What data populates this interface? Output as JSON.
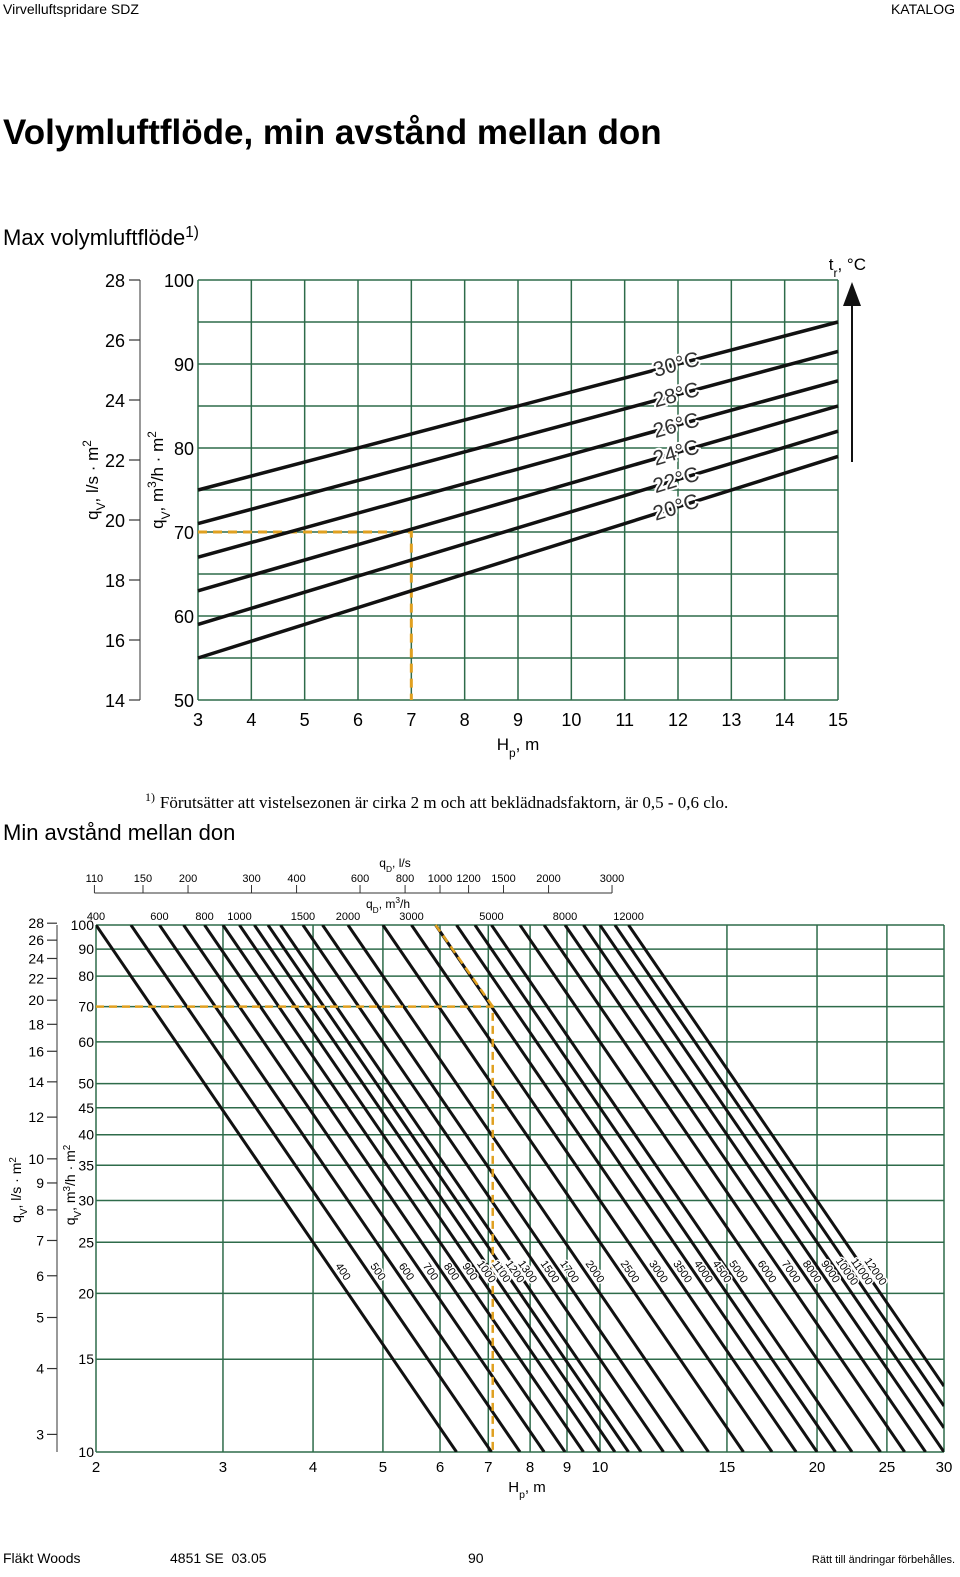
{
  "header": {
    "left": "Virvelluftspridare SDZ",
    "right": "KATALOG"
  },
  "title": "Volymluftflöde, min avstånd mellan don",
  "heading1": [
    "Max volymluftflöde",
    {
      "sup": "1)"
    }
  ],
  "footnote": [
    {
      "sup": "1)"
    },
    "Förutsätter att vistelsezonen är cirka 2 m och att beklädnadsfaktorn, är 0,5 - 0,6 clo."
  ],
  "heading2": "Min avstånd mellan don",
  "footer": {
    "company": "Fläkt Woods",
    "code": "4851 SE  03.05",
    "page": "90",
    "note": "Rätt till ändringar förbehålles."
  },
  "chart_data": [
    {
      "type": "line",
      "x": [
        3,
        15
      ],
      "series": [
        {
          "name": "30°C",
          "values": [
            75,
            95
          ]
        },
        {
          "name": "28°C",
          "values": [
            71,
            91.5
          ]
        },
        {
          "name": "26°C",
          "values": [
            67,
            88
          ]
        },
        {
          "name": "24°C",
          "values": [
            63,
            85
          ]
        },
        {
          "name": "22°C",
          "values": [
            59,
            82
          ]
        },
        {
          "name": "20°C",
          "values": [
            55,
            79
          ]
        }
      ],
      "color": "#111111",
      "grid_color": "#2e6b4a",
      "xlim": [
        3,
        15
      ],
      "xticks": [
        3,
        4,
        5,
        6,
        7,
        8,
        9,
        10,
        11,
        12,
        13,
        14,
        15
      ],
      "ylim": [
        50,
        100
      ],
      "yticks": [
        50,
        60,
        70,
        80,
        90,
        100
      ],
      "ygrid": [
        50,
        55,
        60,
        65,
        70,
        75,
        80,
        85,
        90,
        95,
        100
      ],
      "y2lim": [
        14,
        28
      ],
      "y2ticks": [
        14,
        16,
        18,
        20,
        22,
        24,
        26,
        28
      ],
      "xlabel": [
        "H",
        {
          "sub": "p"
        },
        ", m"
      ],
      "ylabel": [
        "q",
        {
          "sub": "V"
        },
        ", m",
        {
          "sup": "3"
        },
        "/h · m",
        {
          "sup": "2"
        }
      ],
      "y2label": [
        "q",
        {
          "sub": "V"
        },
        ", l/s · m",
        {
          "sup": "2"
        }
      ],
      "arrow_label": [
        "t",
        {
          "sub": "r"
        },
        ", °C"
      ],
      "example": {
        "x": 7,
        "y": 70,
        "color": "#e0a020"
      }
    },
    {
      "type": "nomogram",
      "lines": [
        400,
        500,
        600,
        700,
        800,
        900,
        1000,
        1100,
        1200,
        1300,
        1500,
        1700,
        2000,
        2500,
        3000,
        3500,
        4000,
        4500,
        5000,
        6000,
        7000,
        8000,
        9000,
        10000,
        11000,
        12000
      ],
      "color": "#111111",
      "grid_color": "#2e6b4a",
      "xlim": [
        2,
        30
      ],
      "xticks": [
        2,
        3,
        4,
        5,
        6,
        7,
        8,
        9,
        10,
        15,
        20,
        25,
        30
      ],
      "ylim": [
        10,
        100
      ],
      "yticks": [
        10,
        15,
        20,
        25,
        30,
        35,
        40,
        45,
        50,
        60,
        70,
        80,
        90,
        100
      ],
      "y2lim": [
        2.778,
        27.78
      ],
      "y2ticks": [
        3,
        4,
        5,
        6,
        7,
        8,
        9,
        10,
        12,
        14,
        16,
        18,
        20,
        22,
        24,
        26,
        28
      ],
      "log_scale": true,
      "xlabel": [
        "H",
        {
          "sub": "p"
        },
        ", m"
      ],
      "ylabel": [
        "q",
        {
          "sub": "V"
        },
        ", m",
        {
          "sup": "3"
        },
        "/h · m",
        {
          "sup": "2"
        }
      ],
      "y2label": [
        "q",
        {
          "sub": "V"
        },
        ", l/s · m",
        {
          "sup": "2"
        }
      ],
      "top_lps": {
        "label": [
          "q",
          {
            "sub": "D"
          },
          ", l/s"
        ],
        "ticks": [
          110,
          150,
          200,
          300,
          400,
          600,
          800,
          1000,
          1200,
          1500,
          2000,
          3000
        ]
      },
      "top_m3h": {
        "label": [
          "q",
          {
            "sub": "D"
          },
          ", m",
          {
            "sup": "3"
          },
          "/h"
        ],
        "ticks": [
          400,
          600,
          800,
          1000,
          1500,
          2000,
          3000,
          5000,
          8000,
          12000
        ]
      },
      "example": {
        "hp": 7.1,
        "qv": 70,
        "qd": 3500,
        "color": "#e0a020"
      }
    }
  ]
}
